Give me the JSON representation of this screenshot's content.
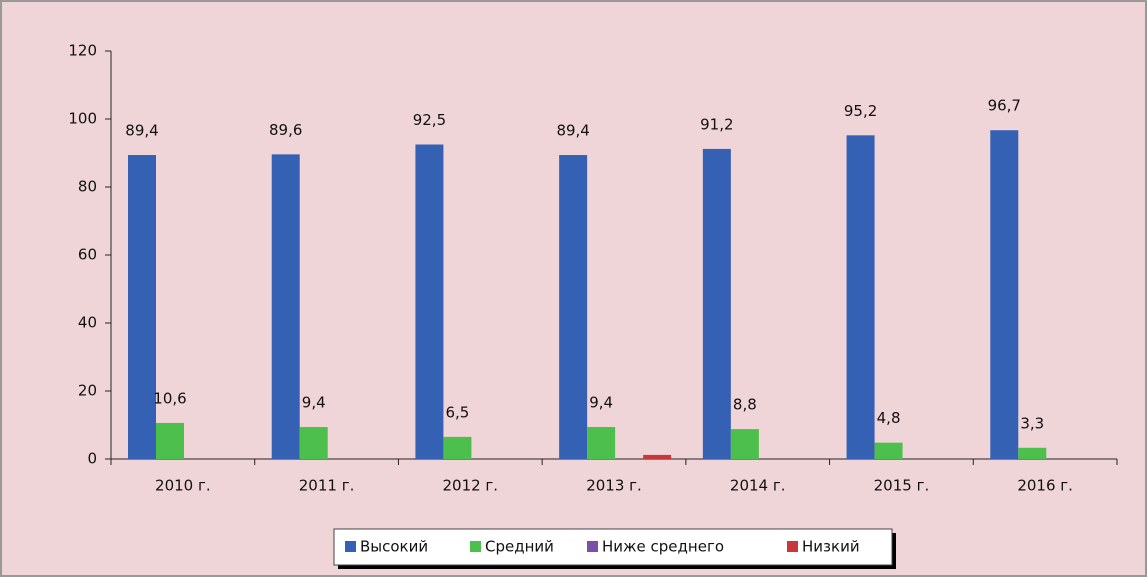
{
  "chart_data": {
    "type": "bar",
    "categories": [
      "2010 г.",
      "2011 г.",
      "2012 г.",
      "2013 г.",
      "2014 г.",
      "2015 г.",
      "2016 г."
    ],
    "series": [
      {
        "name": "Высокий",
        "color": "#3561b5",
        "values": [
          89.4,
          89.6,
          92.5,
          89.4,
          91.2,
          95.2,
          96.7
        ],
        "value_labels": [
          "89,4",
          "89,6",
          "92,5",
          "89,4",
          "91,2",
          "95,2",
          "96,7"
        ]
      },
      {
        "name": "Средний",
        "color": "#4cbf4c",
        "values": [
          10.6,
          9.4,
          6.5,
          9.4,
          8.8,
          4.8,
          3.3
        ],
        "value_labels": [
          "10,6",
          "9,4",
          "6,5",
          "9,4",
          "8,8",
          "4,8",
          "3,3"
        ]
      },
      {
        "name": "Ниже среднего",
        "color": "#7a50a8",
        "values": [
          null,
          null,
          null,
          null,
          null,
          null,
          null
        ]
      },
      {
        "name": "Низкий",
        "color": "#c8373a",
        "values": [
          null,
          null,
          null,
          1.2,
          null,
          null,
          null
        ]
      }
    ],
    "ylim": [
      0,
      120
    ],
    "yticks": [
      0,
      20,
      40,
      60,
      80,
      100,
      120
    ],
    "legend": "bottom"
  }
}
